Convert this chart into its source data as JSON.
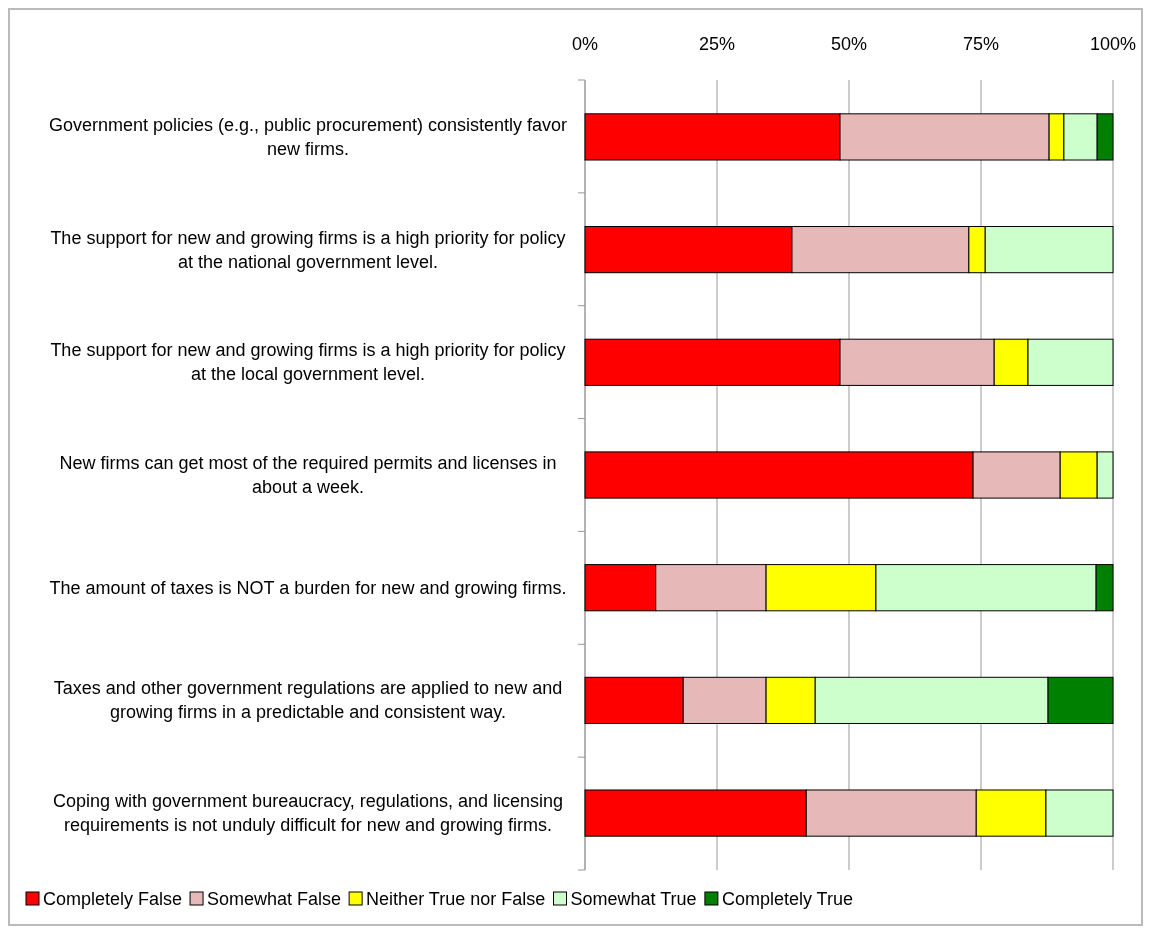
{
  "chart_data": {
    "type": "bar",
    "orientation": "horizontal",
    "stacked": true,
    "categories": [
      "Government policies (e.g., public procurement) consistently favor new firms.",
      "The support for new and growing firms is a high priority for policy at the national government level.",
      "The support for new and growing firms is a high priority for policy at the local government level.",
      "New firms can get most of the required permits and licenses in about a week.",
      "The amount of taxes is NOT a burden for new and growing firms.",
      "Taxes and other government regulations are applied to new and growing firms in a predictable and consistent way.",
      "Coping with government bureaucracy, regulations, and licensing requirements is not unduly difficult for new and growing firms."
    ],
    "series": [
      {
        "name": "Completely False",
        "color": "#ff0000",
        "values": [
          48.3,
          39.2,
          48.3,
          73.5,
          13.4,
          18.6,
          41.9
        ]
      },
      {
        "name": "Somewhat False",
        "color": "#e6b8b8",
        "values": [
          39.6,
          33.5,
          29.2,
          16.5,
          20.9,
          15.7,
          32.2
        ]
      },
      {
        "name": "Neither True nor False",
        "color": "#ffff00",
        "values": [
          2.8,
          3.1,
          6.4,
          7.0,
          20.8,
          9.3,
          13.2
        ]
      },
      {
        "name": "Somewhat True",
        "color": "#ccffcc",
        "values": [
          6.3,
          24.2,
          16.1,
          3.0,
          41.7,
          44.1,
          12.7
        ]
      },
      {
        "name": "Completely True",
        "color": "#008000",
        "values": [
          3.0,
          0,
          0,
          0,
          3.2,
          12.3,
          0
        ]
      }
    ],
    "xlim": [
      0,
      100
    ],
    "xticks": [
      {
        "value": 0,
        "label": "0%"
      },
      {
        "value": 25,
        "label": "25%"
      },
      {
        "value": 50,
        "label": "50%"
      },
      {
        "value": 75,
        "label": "75%"
      },
      {
        "value": 100,
        "label": "100%"
      }
    ],
    "grid": "x",
    "legend": "bottom"
  }
}
